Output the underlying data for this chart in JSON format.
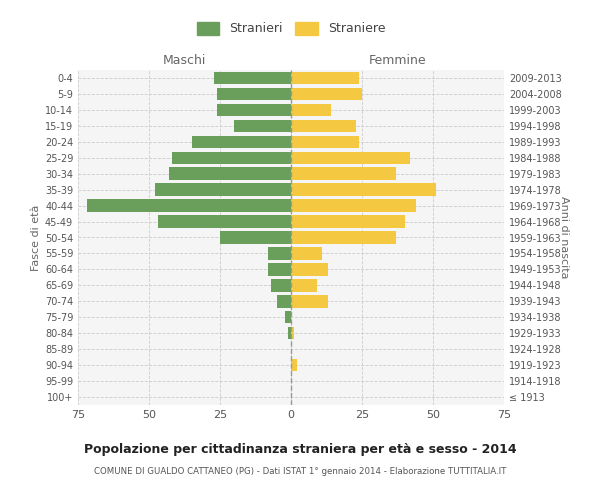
{
  "age_groups": [
    "100+",
    "95-99",
    "90-94",
    "85-89",
    "80-84",
    "75-79",
    "70-74",
    "65-69",
    "60-64",
    "55-59",
    "50-54",
    "45-49",
    "40-44",
    "35-39",
    "30-34",
    "25-29",
    "20-24",
    "15-19",
    "10-14",
    "5-9",
    "0-4"
  ],
  "birth_years": [
    "≤ 1913",
    "1914-1918",
    "1919-1923",
    "1924-1928",
    "1929-1933",
    "1934-1938",
    "1939-1943",
    "1944-1948",
    "1949-1953",
    "1954-1958",
    "1959-1963",
    "1964-1968",
    "1969-1973",
    "1974-1978",
    "1979-1983",
    "1984-1988",
    "1989-1993",
    "1994-1998",
    "1999-2003",
    "2004-2008",
    "2009-2013"
  ],
  "maschi": [
    0,
    0,
    0,
    0,
    1,
    2,
    5,
    7,
    8,
    8,
    25,
    47,
    72,
    48,
    43,
    42,
    35,
    20,
    26,
    26,
    27
  ],
  "femmine": [
    0,
    0,
    2,
    0,
    1,
    0,
    13,
    9,
    13,
    11,
    37,
    40,
    44,
    51,
    37,
    42,
    24,
    23,
    14,
    25,
    24
  ],
  "color_maschi": "#6a9e5b",
  "color_femmine": "#f5c842",
  "color_grid": "#cccccc",
  "color_center_line": "#999999",
  "title": "Popolazione per cittadinanza straniera per età e sesso - 2014",
  "subtitle": "COMUNE DI GUALDO CATTANEO (PG) - Dati ISTAT 1° gennaio 2014 - Elaborazione TUTTITALIA.IT",
  "ylabel_left": "Fasce di età",
  "ylabel_right": "Anni di nascita",
  "xlabel_left": "Maschi",
  "xlabel_right": "Femmine",
  "legend_stranieri": "Stranieri",
  "legend_straniere": "Straniere",
  "xlim": 75,
  "bg_color": "#ffffff",
  "plot_bg_color": "#f5f5f5"
}
